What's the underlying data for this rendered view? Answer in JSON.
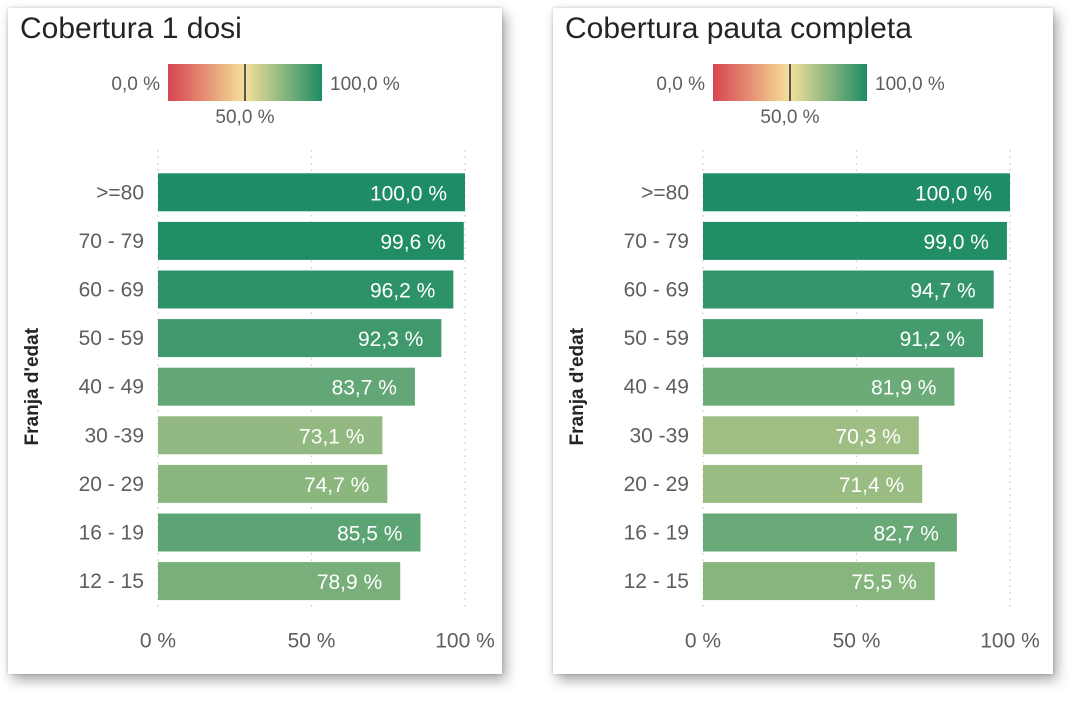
{
  "chart_data": [
    {
      "type": "bar",
      "title": "Cobertura 1 dosi",
      "ylabel": "Franja d'edat",
      "xlabel": "",
      "xlim": [
        0,
        100
      ],
      "x_ticks": [
        "0 %",
        "50 %",
        "100 %"
      ],
      "categories": [
        ">=80",
        "70 - 79",
        "60 - 69",
        "50 - 59",
        "40 - 49",
        "30 -39",
        "20 - 29",
        "16 - 19",
        "12 - 15"
      ],
      "values": [
        100.0,
        99.6,
        96.2,
        92.3,
        83.7,
        73.1,
        74.7,
        85.5,
        78.9
      ],
      "data_labels": [
        "100,0 %",
        "99,6 %",
        "96,2 %",
        "92,3 %",
        "83,7 %",
        "73,1 %",
        "74,7 %",
        "85,5 %",
        "78,9 %"
      ],
      "color_scale": {
        "min_label": "0,0 %",
        "mid_label": "50,0 %",
        "max_label": "100,0 %",
        "colors": [
          "#d64550",
          "#f5e09a",
          "#1e8c64"
        ]
      },
      "grid": true
    },
    {
      "type": "bar",
      "title": "Cobertura pauta completa",
      "ylabel": "Franja d'edat",
      "xlabel": "",
      "xlim": [
        0,
        100
      ],
      "x_ticks": [
        "0 %",
        "50 %",
        "100 %"
      ],
      "categories": [
        ">=80",
        "70 - 79",
        "60 - 69",
        "50 - 59",
        "40 - 49",
        "30 -39",
        "20 - 29",
        "16 - 19",
        "12 - 15"
      ],
      "values": [
        100.0,
        99.0,
        94.7,
        91.2,
        81.9,
        70.3,
        71.4,
        82.7,
        75.5
      ],
      "data_labels": [
        "100,0 %",
        "99,0 %",
        "94,7 %",
        "91,2 %",
        "81,9 %",
        "70,3 %",
        "71,4 %",
        "82,7 %",
        "75,5 %"
      ],
      "color_scale": {
        "min_label": "0,0 %",
        "mid_label": "50,0 %",
        "max_label": "100,0 %",
        "colors": [
          "#d64550",
          "#f5e09a",
          "#1e8c64"
        ]
      },
      "grid": true
    }
  ]
}
